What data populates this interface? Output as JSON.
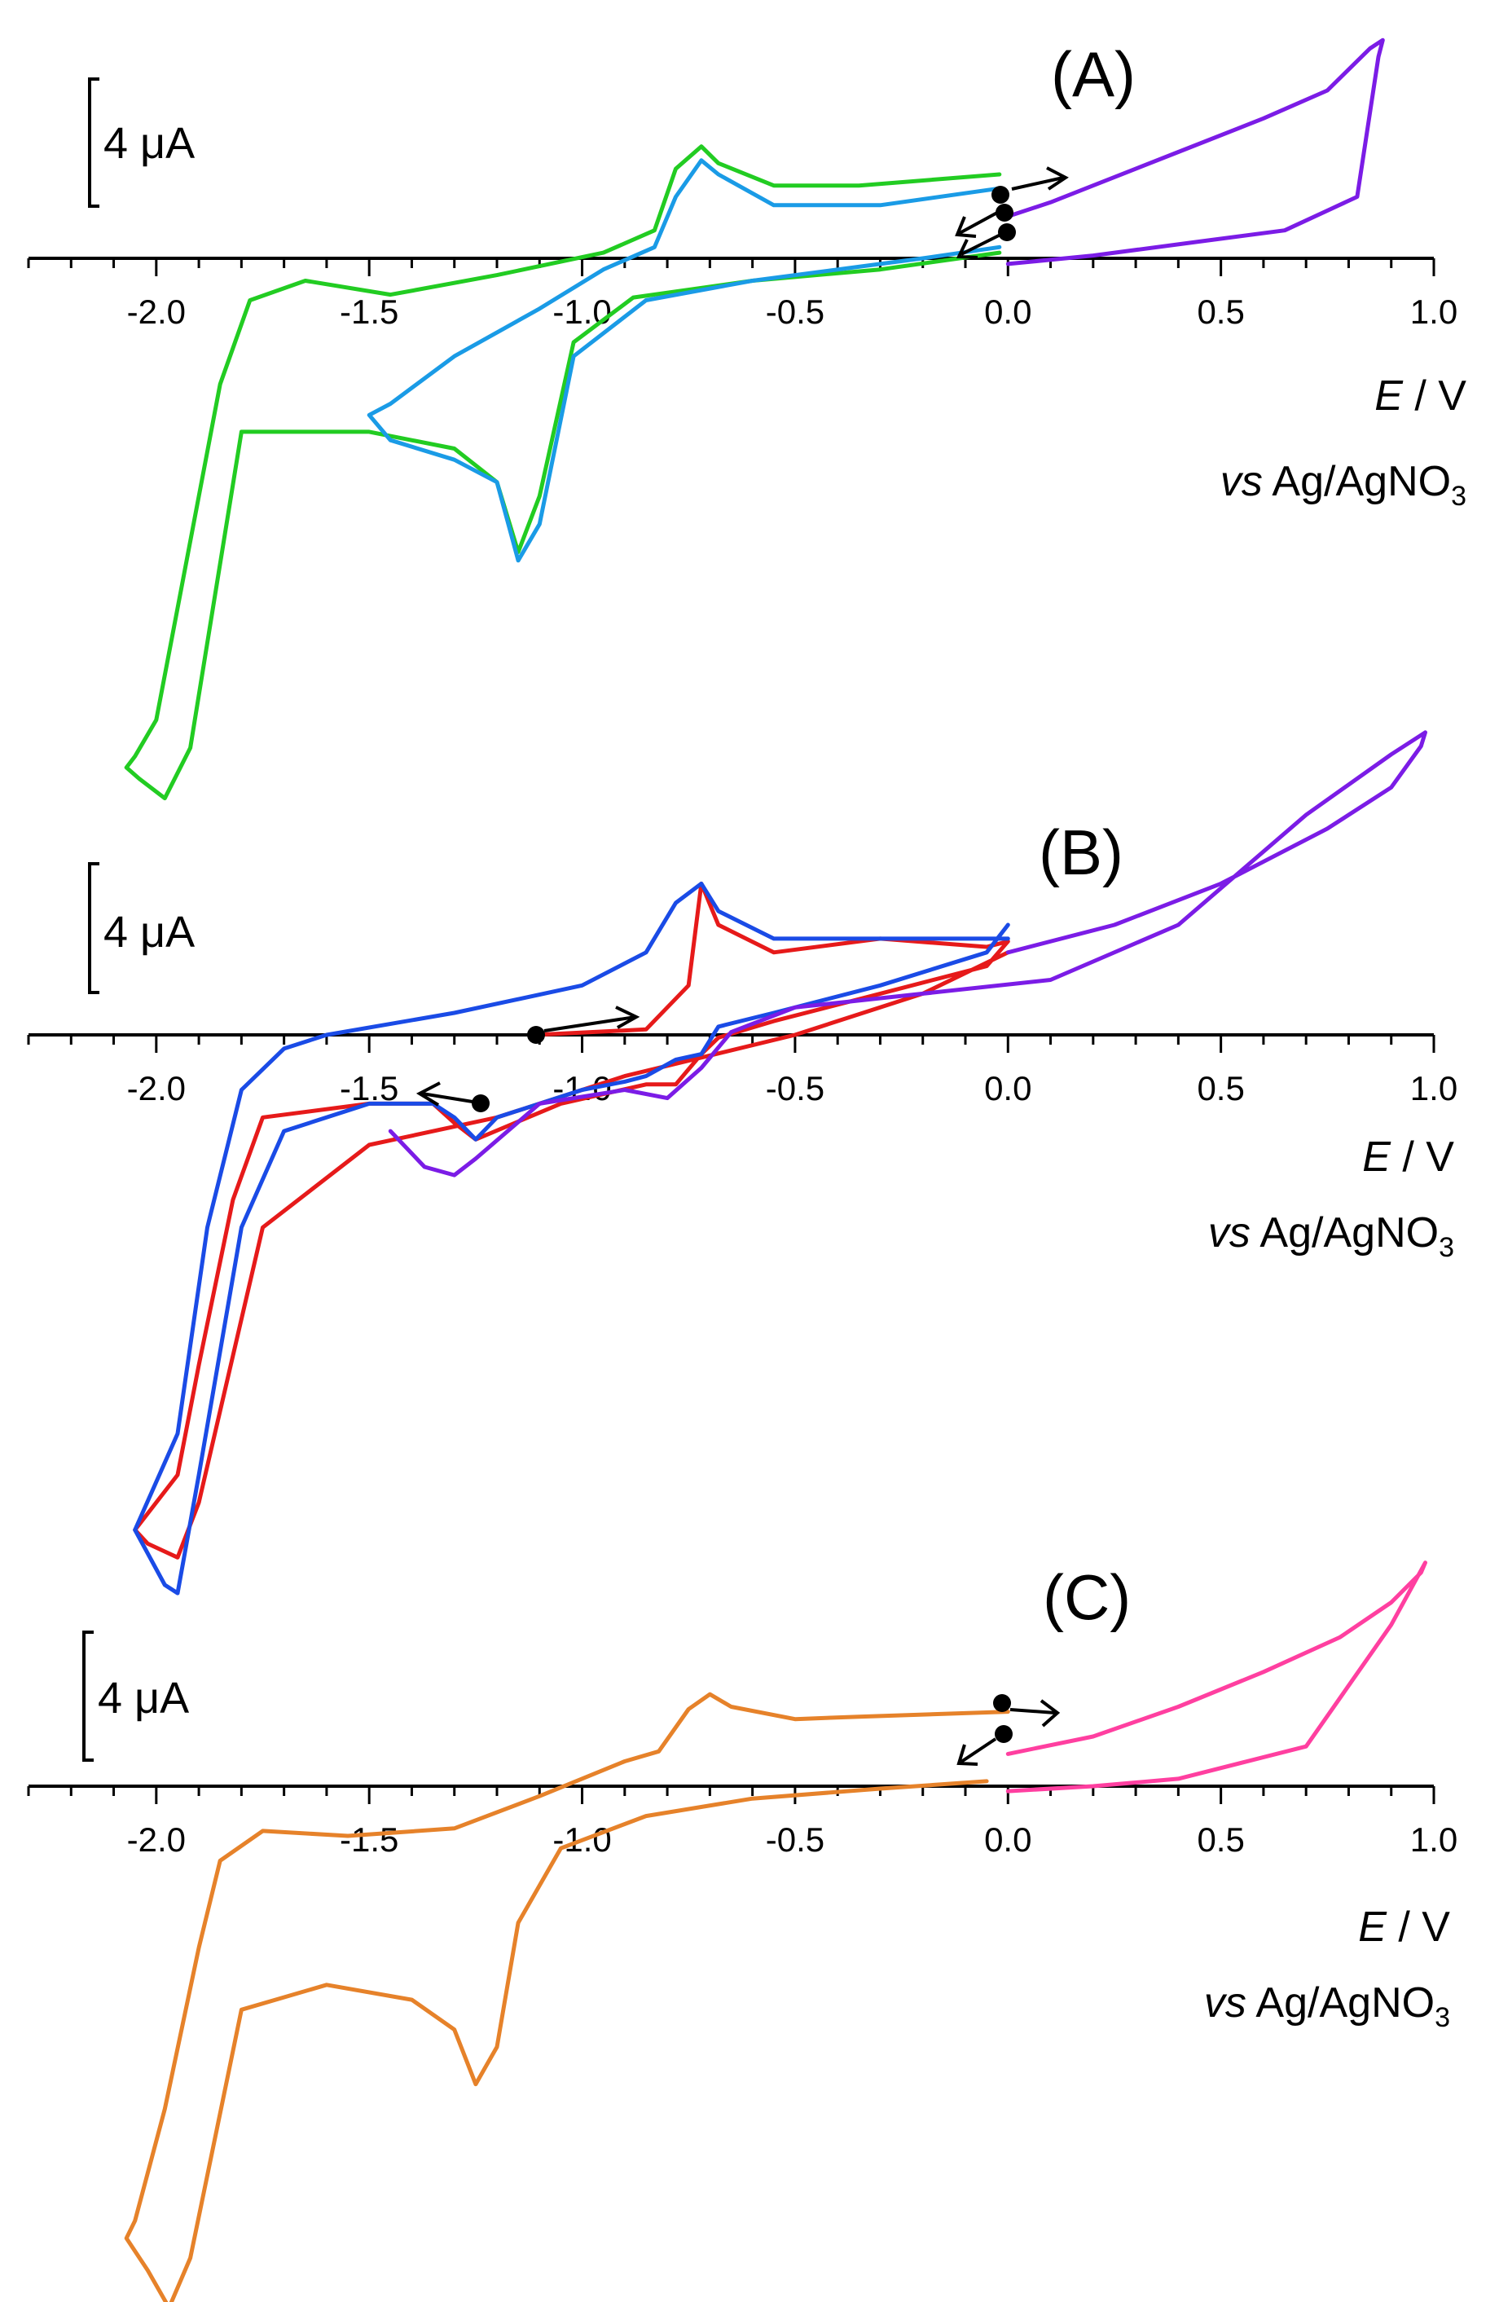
{
  "chart_data": [
    {
      "type": "line",
      "panel": "(A)",
      "scale_bar_label": "4 μA",
      "scale_bar_value_uA": 4,
      "xlabel_italic": "E",
      "xlabel_rest": " / V",
      "reference_italic": "vs",
      "reference_main": " Ag/AgNO",
      "reference_sub": "3",
      "xlim": [
        -2.3,
        1.0
      ],
      "ylim_uA": [
        -18.5,
        8.5
      ],
      "xticks": [
        -2.0,
        -1.5,
        -1.0,
        -0.5,
        0.0,
        0.5,
        1.0
      ],
      "xtick_labels": [
        "-2.0",
        "-1.5",
        "-1.0",
        "-0.5",
        "0.0",
        "0.5",
        "1.0"
      ],
      "series": [
        {
          "name": "green",
          "color": "#22cc22",
          "x": [
            -0.02,
            -0.35,
            -0.55,
            -0.68,
            -0.72,
            -0.78,
            -0.83,
            -0.95,
            -1.2,
            -1.45,
            -1.65,
            -1.78,
            -1.85,
            -1.9,
            -1.95,
            -2.0,
            -2.05,
            -2.07,
            -2.04,
            -1.98,
            -1.92,
            -1.8,
            -1.5,
            -1.3,
            -1.2,
            -1.15,
            -1.1,
            -1.02,
            -0.88,
            -0.6,
            -0.3,
            -0.02
          ],
          "y": [
            3.0,
            2.6,
            2.6,
            3.4,
            4.0,
            3.2,
            1.0,
            0.2,
            -0.6,
            -1.3,
            -0.8,
            -1.5,
            -4.5,
            -8.5,
            -12.5,
            -16.5,
            -17.8,
            -18.2,
            -18.6,
            -19.3,
            -17.5,
            -6.2,
            -6.2,
            -6.8,
            -8.0,
            -10.5,
            -8.5,
            -3.0,
            -1.4,
            -0.8,
            -0.4,
            0.2
          ]
        },
        {
          "name": "light-blue",
          "color": "#1a9be6",
          "x": [
            -0.02,
            -0.3,
            -0.55,
            -0.68,
            -0.72,
            -0.78,
            -0.83,
            -0.95,
            -1.1,
            -1.3,
            -1.45,
            -1.5,
            -1.45,
            -1.3,
            -1.2,
            -1.15,
            -1.1,
            -1.02,
            -0.85,
            -0.6,
            -0.2,
            -0.02
          ],
          "y": [
            2.5,
            1.9,
            1.9,
            3.0,
            3.5,
            2.2,
            0.4,
            -0.4,
            -1.8,
            -3.5,
            -5.2,
            -5.6,
            -6.5,
            -7.2,
            -8.0,
            -10.8,
            -9.5,
            -3.5,
            -1.5,
            -0.8,
            0.0,
            0.4
          ]
        },
        {
          "name": "violet",
          "color": "#7b1ce6",
          "x": [
            0.0,
            0.1,
            0.2,
            0.4,
            0.6,
            0.75,
            0.85,
            0.88,
            0.87,
            0.82,
            0.65,
            0.45,
            0.2,
            0.0
          ],
          "y": [
            1.5,
            2.0,
            2.6,
            3.8,
            5.0,
            6.0,
            7.5,
            7.8,
            7.2,
            2.2,
            1.0,
            0.6,
            0.1,
            -0.2
          ]
        }
      ]
    },
    {
      "type": "line",
      "panel": "(B)",
      "scale_bar_label": "4 μA",
      "scale_bar_value_uA": 4,
      "xlabel_italic": "E",
      "xlabel_rest": " / V",
      "reference_italic": "vs",
      "reference_main": " Ag/AgNO",
      "reference_sub": "3",
      "xlim": [
        -2.3,
        1.0
      ],
      "ylim_uA": [
        -20.5,
        11.5
      ],
      "xticks": [
        -2.0,
        -1.5,
        -1.0,
        -0.5,
        0.0,
        0.5,
        1.0
      ],
      "xtick_labels": [
        "-2.0",
        "-1.5",
        "-1.0",
        "-0.5",
        "0.0",
        "0.5",
        "1.0"
      ],
      "series": [
        {
          "name": "red",
          "color": "#e61a1a",
          "x": [
            -1.11,
            -0.85,
            -0.75,
            -0.72,
            -0.68,
            -0.55,
            -0.3,
            -0.05,
            0.0,
            -0.05,
            -0.3,
            -0.55,
            -0.68,
            -0.72,
            -0.78,
            -0.85,
            -1.05,
            -1.25,
            -1.3,
            -1.35,
            -1.5,
            -1.75,
            -1.82,
            -1.9,
            -1.95,
            -2.05,
            -2.02,
            -1.95,
            -1.9,
            -1.75,
            -1.5,
            -1.2,
            -0.9,
            -0.5,
            -0.2,
            0.0
          ],
          "y": [
            0.0,
            0.2,
            1.8,
            5.5,
            4.0,
            3.0,
            3.5,
            3.2,
            3.4,
            2.5,
            1.5,
            0.5,
            -0.1,
            -0.7,
            -1.8,
            -1.8,
            -2.5,
            -3.8,
            -3.2,
            -2.5,
            -2.5,
            -3.0,
            -6.0,
            -12.0,
            -16.0,
            -18.0,
            -18.5,
            -19.0,
            -17.0,
            -7.0,
            -4.0,
            -3.0,
            -1.5,
            0.0,
            1.5,
            3.0
          ]
        },
        {
          "name": "blue",
          "color": "#1a4be6",
          "x": [
            -0.0,
            -0.55,
            -0.68,
            -0.72,
            -0.78,
            -0.85,
            -1.0,
            -1.3,
            -1.6,
            -1.7,
            -1.8,
            -1.88,
            -1.95,
            -2.05,
            -1.98,
            -1.95,
            -1.9,
            -1.8,
            -1.7,
            -1.5,
            -1.35,
            -1.3,
            -1.25,
            -1.2,
            -1.1,
            -1.0,
            -0.9,
            -0.85,
            -0.78,
            -0.72,
            -0.68,
            -0.55,
            -0.3,
            -0.05,
            0.0
          ],
          "y": [
            3.5,
            3.5,
            4.5,
            5.5,
            4.8,
            3.0,
            1.8,
            0.8,
            0.0,
            -0.5,
            -2.0,
            -7.0,
            -14.5,
            -18.0,
            -20.0,
            -20.3,
            -16.0,
            -7.0,
            -3.5,
            -2.5,
            -2.5,
            -3.0,
            -3.8,
            -3.0,
            -2.5,
            -2.0,
            -1.7,
            -1.5,
            -0.9,
            -0.7,
            0.3,
            0.8,
            1.8,
            3.0,
            4.0
          ]
        },
        {
          "name": "violet",
          "color": "#7b1ce6",
          "x": [
            0.0,
            0.25,
            0.5,
            0.75,
            0.9,
            0.97,
            0.98,
            0.9,
            0.7,
            0.4,
            0.1,
            -0.2,
            -0.5,
            -0.65,
            -0.72,
            -0.8,
            -0.9,
            -1.1,
            -1.25,
            -1.3,
            -1.37,
            -1.45
          ],
          "y": [
            3.0,
            4.0,
            5.5,
            7.5,
            9.0,
            10.5,
            11.0,
            10.2,
            8.0,
            4.0,
            2.0,
            1.5,
            1.0,
            0.1,
            -1.2,
            -2.3,
            -2.0,
            -2.5,
            -4.5,
            -5.1,
            -4.8,
            -3.5
          ]
        }
      ]
    },
    {
      "type": "line",
      "panel": "(C)",
      "scale_bar_label": "4 μA",
      "scale_bar_value_uA": 4,
      "xlabel_italic": "E",
      "xlabel_rest": " / V",
      "reference_italic": "vs",
      "reference_main": " Ag/AgNO",
      "reference_sub": "3",
      "xlim": [
        -2.3,
        1.0
      ],
      "ylim_uA": [
        -21.5,
        10.0
      ],
      "xticks": [
        -2.0,
        -1.5,
        -1.0,
        -0.5,
        0.0,
        0.5,
        1.0
      ],
      "xtick_labels": [
        "-2.0",
        "-1.5",
        "-1.0",
        "-0.5",
        "0.0",
        "0.5",
        "1.0"
      ],
      "series": [
        {
          "name": "orange",
          "color": "#e6822a",
          "x": [
            0.0,
            -0.35,
            -0.5,
            -0.65,
            -0.7,
            -0.75,
            -0.82,
            -0.9,
            -1.1,
            -1.3,
            -1.55,
            -1.75,
            -1.85,
            -1.9,
            -1.98,
            -2.05,
            -2.07,
            -2.02,
            -1.97,
            -1.92,
            -1.8,
            -1.6,
            -1.4,
            -1.3,
            -1.25,
            -1.2,
            -1.15,
            -1.05,
            -0.85,
            -0.6,
            -0.3,
            -0.05
          ],
          "y": [
            3.0,
            2.8,
            2.7,
            3.2,
            3.7,
            3.1,
            1.4,
            1.0,
            -0.4,
            -1.7,
            -2.0,
            -1.8,
            -3.0,
            -6.5,
            -13.0,
            -17.5,
            -18.2,
            -19.5,
            -21.0,
            -19.0,
            -9.0,
            -8.0,
            -8.6,
            -9.8,
            -12.0,
            -10.5,
            -5.5,
            -2.5,
            -1.2,
            -0.5,
            -0.1,
            0.2
          ]
        },
        {
          "name": "pink",
          "color": "#ff3fa0",
          "x": [
            0.0,
            0.2,
            0.4,
            0.6,
            0.78,
            0.9,
            0.97,
            0.98,
            0.9,
            0.7,
            0.4,
            0.2,
            0.0
          ],
          "y": [
            1.3,
            2.0,
            3.2,
            4.6,
            6.0,
            7.4,
            8.6,
            9.0,
            6.5,
            1.6,
            0.3,
            0.0,
            -0.2
          ]
        }
      ]
    }
  ]
}
